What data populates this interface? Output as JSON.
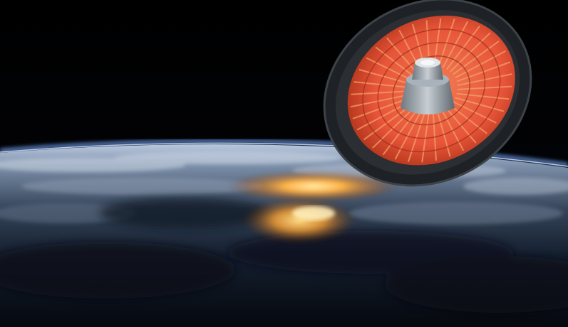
{
  "scene": {
    "subject": "inflatable-heat-shield-spacecraft",
    "background": "earth-limb-at-sunset",
    "colors": {
      "space": "#04060c",
      "atmosphere": "#6f9ff0",
      "cloud_light": "#cfd8e6",
      "ocean_dark": "#0c1420",
      "sunglint": "#ffb347",
      "sunglint_core": "#fff0b0",
      "shield_outer": "#2b2f33",
      "shield_inner": "#e8553a",
      "shield_rib": "#f4a06a",
      "capsule": "#8e979f",
      "capsule_light": "#c7ced4"
    }
  }
}
